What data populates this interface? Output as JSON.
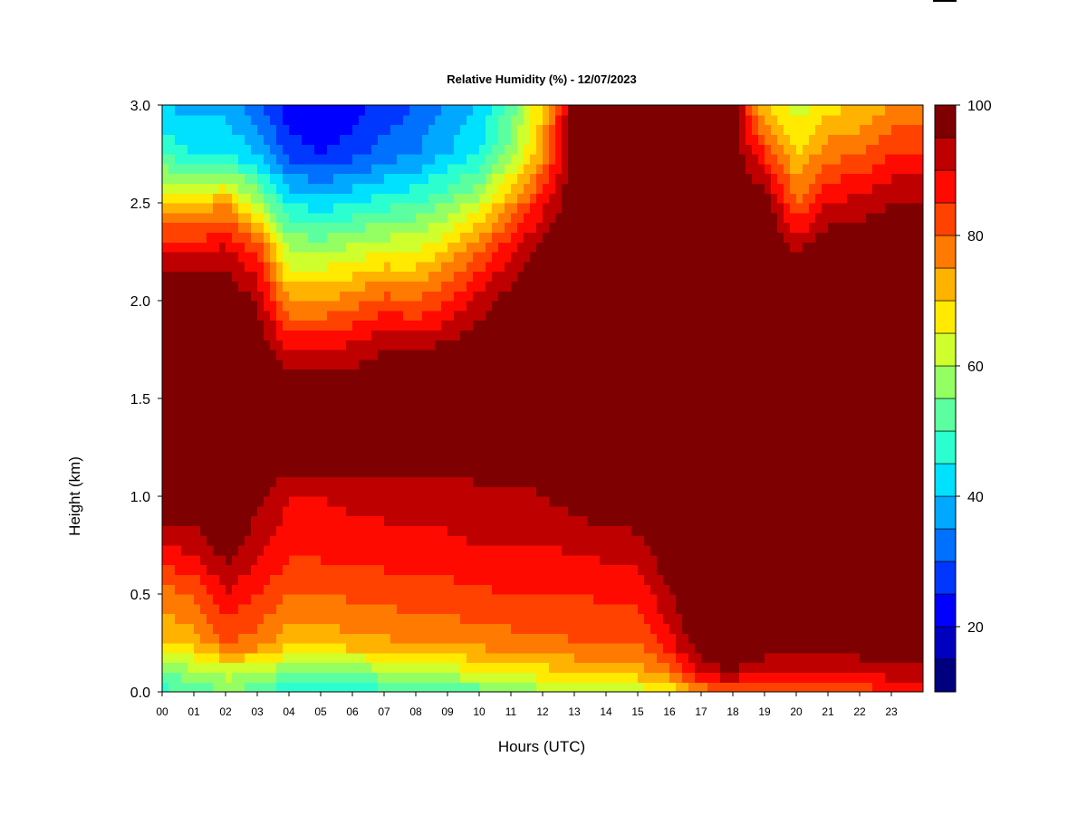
{
  "chart_data": {
    "type": "heatmap",
    "title": "Relative Humidity (%) - 12/07/2023",
    "xlabel": "Hours (UTC)",
    "ylabel": "Height (km)",
    "xlim": [
      0,
      24
    ],
    "ylim": [
      0,
      3.0
    ],
    "x_ticks": [
      "00",
      "01",
      "02",
      "03",
      "04",
      "05",
      "06",
      "07",
      "08",
      "09",
      "10",
      "11",
      "12",
      "13",
      "14",
      "15",
      "16",
      "17",
      "18",
      "19",
      "20",
      "21",
      "22",
      "23"
    ],
    "y_ticks": [
      "0.0",
      "0.5",
      "1.0",
      "1.5",
      "2.0",
      "2.5",
      "3.0"
    ],
    "colorbar": {
      "range": [
        10,
        100
      ],
      "tick_values": [
        20,
        40,
        60,
        80,
        100
      ],
      "tick_labels": [
        "20",
        "40",
        "60",
        "80",
        "100"
      ],
      "levels": [
        10,
        15,
        20,
        25,
        30,
        35,
        40,
        45,
        50,
        55,
        60,
        65,
        70,
        75,
        80,
        85,
        90,
        95,
        100
      ],
      "colors": [
        "#00007F",
        "#0000BF",
        "#0000FF",
        "#0037FF",
        "#0070FF",
        "#00A8FF",
        "#00E0FF",
        "#2CFFCF",
        "#5CFF9F",
        "#94FF63",
        "#CFFF2C",
        "#FFEA00",
        "#FFB200",
        "#FF7A00",
        "#FF4200",
        "#FF0A00",
        "#BF0000",
        "#7F0000"
      ]
    },
    "heights_km": [
      0.0,
      0.1,
      0.25,
      0.5,
      0.75,
      1.0,
      1.25,
      1.5,
      1.75,
      2.0,
      2.25,
      2.5,
      2.75,
      3.0
    ],
    "hours": [
      0,
      1,
      2,
      3,
      4,
      5,
      6,
      7,
      8,
      9,
      10,
      11,
      12,
      13,
      14,
      15,
      16,
      17,
      18,
      19,
      20,
      21,
      22,
      23,
      24
    ],
    "rh_percent": [
      [
        48,
        55,
        70,
        78,
        90,
        100,
        100,
        100,
        100,
        100,
        90,
        70,
        50,
        40
      ],
      [
        50,
        58,
        72,
        80,
        92,
        100,
        100,
        100,
        100,
        100,
        90,
        70,
        45,
        38
      ],
      [
        55,
        62,
        80,
        90,
        98,
        100,
        100,
        100,
        100,
        100,
        92,
        75,
        45,
        38
      ],
      [
        52,
        60,
        78,
        85,
        92,
        97,
        100,
        100,
        100,
        95,
        85,
        60,
        40,
        32
      ],
      [
        45,
        55,
        72,
        80,
        87,
        90,
        100,
        100,
        90,
        75,
        60,
        45,
        28,
        22
      ],
      [
        45,
        55,
        72,
        80,
        87,
        90,
        100,
        100,
        90,
        75,
        60,
        42,
        25,
        20
      ],
      [
        46,
        56,
        73,
        81,
        88,
        91,
        100,
        100,
        92,
        78,
        62,
        45,
        28,
        22
      ],
      [
        48,
        58,
        74,
        82,
        88,
        92,
        100,
        100,
        95,
        82,
        65,
        48,
        32,
        27
      ],
      [
        50,
        60,
        75,
        83,
        88,
        92,
        100,
        100,
        95,
        80,
        65,
        50,
        35,
        30
      ],
      [
        50,
        62,
        76,
        83,
        89,
        92,
        100,
        100,
        97,
        85,
        72,
        55,
        40,
        35
      ],
      [
        52,
        64,
        77,
        84,
        90,
        93,
        100,
        100,
        100,
        92,
        80,
        62,
        45,
        40
      ],
      [
        55,
        66,
        78,
        85,
        90,
        93,
        100,
        100,
        100,
        98,
        90,
        75,
        58,
        52
      ],
      [
        58,
        68,
        78,
        85,
        90,
        95,
        100,
        100,
        100,
        100,
        98,
        88,
        75,
        70
      ],
      [
        60,
        70,
        80,
        85,
        91,
        97,
        100,
        100,
        100,
        100,
        100,
        100,
        100,
        98
      ],
      [
        62,
        72,
        80,
        86,
        92,
        100,
        100,
        100,
        100,
        100,
        100,
        100,
        100,
        100
      ],
      [
        62,
        72,
        80,
        86,
        93,
        100,
        100,
        100,
        100,
        100,
        100,
        100,
        100,
        100
      ],
      [
        65,
        78,
        88,
        95,
        100,
        100,
        100,
        100,
        100,
        100,
        100,
        100,
        100,
        100
      ],
      [
        75,
        92,
        100,
        100,
        100,
        100,
        100,
        100,
        100,
        100,
        100,
        100,
        100,
        100
      ],
      [
        80,
        95,
        100,
        100,
        100,
        100,
        100,
        100,
        100,
        100,
        100,
        100,
        100,
        98
      ],
      [
        78,
        90,
        100,
        100,
        100,
        100,
        100,
        100,
        100,
        100,
        100,
        100,
        85,
        70
      ],
      [
        78,
        88,
        100,
        100,
        100,
        100,
        100,
        100,
        100,
        100,
        95,
        80,
        70,
        62
      ],
      [
        80,
        88,
        100,
        100,
        100,
        100,
        100,
        100,
        100,
        100,
        100,
        90,
        78,
        68
      ],
      [
        82,
        90,
        100,
        100,
        100,
        100,
        100,
        100,
        100,
        100,
        100,
        92,
        80,
        70
      ],
      [
        85,
        92,
        100,
        100,
        100,
        100,
        100,
        100,
        100,
        100,
        100,
        95,
        85,
        75
      ],
      [
        85,
        92,
        100,
        100,
        100,
        100,
        100,
        100,
        100,
        100,
        100,
        95,
        85,
        75
      ]
    ]
  }
}
